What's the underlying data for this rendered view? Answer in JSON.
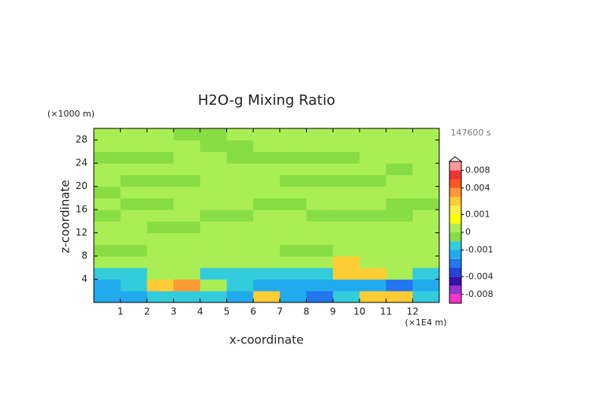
{
  "chart_data": {
    "type": "contour",
    "title": "H2O-g Mixing Ratio",
    "x_label": "x-coordinate",
    "y_label": "z-coordinate",
    "x_unit": "(×1E4 m)",
    "y_unit": "(×1000 m)",
    "time_label": "147600 s",
    "xlim": [
      0,
      13
    ],
    "ylim": [
      0,
      30
    ],
    "xticks": [
      1,
      2,
      3,
      4,
      5,
      6,
      7,
      8,
      9,
      10,
      11,
      12
    ],
    "yticks": [
      4,
      8,
      12,
      16,
      20,
      24,
      28
    ],
    "x": [
      0.5,
      1.5,
      2.5,
      3.5,
      4.5,
      5.5,
      6.5,
      7.5,
      8.5,
      9.5,
      10.5,
      11.5,
      12.5
    ],
    "y": [
      1,
      3,
      5,
      7,
      9,
      11,
      13,
      15,
      17,
      19,
      21,
      23,
      25,
      27,
      29
    ],
    "values": [
      [
        -0.002,
        -0.002,
        -0.0007,
        -0.0007,
        -0.0007,
        -0.002,
        0.002,
        -0.002,
        -0.003,
        -0.001,
        0.002,
        0.002,
        -0.0007
      ],
      [
        -0.002,
        -0.0007,
        0.002,
        0.003,
        0.0003,
        -0.0007,
        -0.002,
        -0.002,
        -0.002,
        -0.0015,
        -0.002,
        -0.003,
        -0.002
      ],
      [
        -0.0007,
        -0.0007,
        0.0003,
        0.0003,
        -0.0007,
        -0.0007,
        -0.0007,
        -0.0007,
        -0.0007,
        0.002,
        0.002,
        0.0003,
        -0.0007
      ],
      [
        0.0003,
        0.0003,
        0.0003,
        0.0003,
        0.0003,
        0.0003,
        0.0003,
        0.0003,
        0.0003,
        0.002,
        0.0003,
        0.0003,
        0.0003
      ],
      [
        -0.0003,
        -0.0003,
        0.0003,
        0.0003,
        0.0003,
        0.0003,
        0.0003,
        -0.0003,
        -0.0003,
        0.0003,
        0.0003,
        0.0003,
        0.0003
      ],
      [
        0.0003,
        0.0003,
        0.0003,
        0.0003,
        0.0003,
        0.0003,
        0.0003,
        0.0003,
        0.0003,
        0.0003,
        0.0003,
        0.0003,
        0.0003
      ],
      [
        0.0003,
        0.0003,
        -0.0003,
        -0.0003,
        0.0003,
        0.0003,
        0.0003,
        0.0003,
        0.0003,
        0.0003,
        0.0003,
        0.0003,
        0.0003
      ],
      [
        -0.0003,
        0.0003,
        0.0003,
        0.0003,
        -0.0003,
        -0.0003,
        0.0003,
        0.0003,
        -0.0003,
        -0.0003,
        -0.0003,
        -0.0003,
        0.0003
      ],
      [
        0.0003,
        -0.0003,
        -0.0003,
        0.0003,
        0.0003,
        0.0003,
        -0.0003,
        -0.0003,
        0.0003,
        0.0003,
        0.0003,
        -0.0003,
        -0.0003
      ],
      [
        -0.0003,
        0.0003,
        0.0003,
        0.0003,
        0.0003,
        0.0003,
        0.0003,
        0.0003,
        0.0003,
        0.0003,
        0.0003,
        0.0003,
        0.0003
      ],
      [
        0.0003,
        -0.0003,
        -0.0003,
        -0.0003,
        0.0003,
        0.0003,
        0.0003,
        -0.0003,
        -0.0003,
        -0.0003,
        -0.0003,
        0.0003,
        0.0003
      ],
      [
        0.0003,
        0.0003,
        0.0003,
        0.0003,
        0.0003,
        0.0003,
        0.0003,
        0.0003,
        0.0003,
        0.0003,
        0.0003,
        -0.0003,
        0.0003
      ],
      [
        -0.0003,
        -0.0003,
        -0.0003,
        0.0003,
        0.0003,
        -0.0003,
        -0.0003,
        -0.0003,
        -0.0003,
        -0.0003,
        0.0003,
        0.0003,
        0.0003
      ],
      [
        0.0003,
        0.0003,
        0.0003,
        0.0003,
        -0.0003,
        -0.0003,
        0.0003,
        0.0003,
        0.0003,
        0.0003,
        0.0003,
        0.0003,
        0.0003
      ],
      [
        0.0003,
        0.0003,
        0.0003,
        -0.0003,
        -0.0003,
        0.0003,
        0.0003,
        0.0003,
        0.0003,
        0.0003,
        0.0003,
        0.0003,
        0.0003
      ]
    ],
    "levels": [
      -0.01,
      -0.008,
      -0.006,
      -0.004,
      -0.003,
      -0.002,
      -0.001,
      -0.0005,
      0,
      0.0005,
      0.001,
      0.002,
      0.003,
      0.004,
      0.006,
      0.008,
      0.01
    ],
    "colors": [
      "#ff33cc",
      "#9933cc",
      "#3311aa",
      "#2244dd",
      "#2277ee",
      "#22aaee",
      "#33ccdd",
      "#88dd44",
      "#aaee55",
      "#ffff00",
      "#ffee44",
      "#ffcc33",
      "#ff9933",
      "#ff5522",
      "#ee3333",
      "#ff9999"
    ],
    "colorbar_ticks": [
      0.008,
      0.004,
      0.001,
      0,
      -0.001,
      -0.004,
      -0.008
    ]
  }
}
